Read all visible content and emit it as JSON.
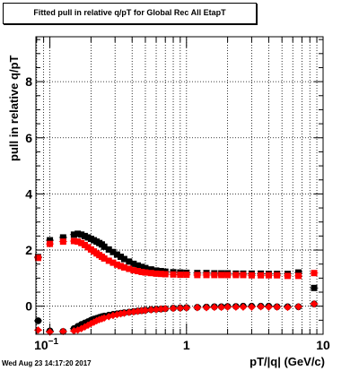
{
  "chart_data": {
    "type": "scatter",
    "title": "Fitted pull in relative q/pT for Global Rec All EtapT",
    "xlabel": "pT/|q| (GeV/c)",
    "ylabel": "pull in relative q/pT",
    "xscale": "log",
    "xlim": [
      0.079,
      10
    ],
    "ylim": [
      -1,
      9.6
    ],
    "grid": true,
    "x_ticks": [
      {
        "value": 0.1,
        "label": "10",
        "exponent": "−1"
      },
      {
        "value": 1,
        "label": "1"
      },
      {
        "value": 10,
        "label": "10"
      }
    ],
    "y_ticks": [
      {
        "value": 0,
        "label": "0"
      },
      {
        "value": 2,
        "label": "2"
      },
      {
        "value": 4,
        "label": "4"
      },
      {
        "value": 6,
        "label": "6"
      },
      {
        "value": 8,
        "label": "8"
      }
    ],
    "colors": {
      "black_series": "#000000",
      "red_series": "#ff0000"
    },
    "series": [
      {
        "marker": "square",
        "color": "#000000",
        "x": [
          0.082,
          0.1,
          0.125,
          0.15,
          0.16,
          0.17,
          0.18,
          0.19,
          0.2,
          0.21,
          0.22,
          0.23,
          0.24,
          0.25,
          0.27,
          0.29,
          0.31,
          0.33,
          0.35,
          0.38,
          0.41,
          0.44,
          0.47,
          0.5,
          0.55,
          0.6,
          0.65,
          0.7,
          0.8,
          0.9,
          1.0,
          1.2,
          1.4,
          1.6,
          1.8,
          2.0,
          2.3,
          2.6,
          3.0,
          3.5,
          4.0,
          4.6,
          5.5,
          6.6,
          8.6
        ],
        "y": [
          1.75,
          2.35,
          2.45,
          2.55,
          2.58,
          2.55,
          2.5,
          2.45,
          2.4,
          2.35,
          2.3,
          2.25,
          2.2,
          2.12,
          2.02,
          1.93,
          1.84,
          1.76,
          1.68,
          1.59,
          1.51,
          1.45,
          1.4,
          1.36,
          1.31,
          1.27,
          1.25,
          1.23,
          1.21,
          1.2,
          1.19,
          1.18,
          1.18,
          1.17,
          1.17,
          1.17,
          1.16,
          1.16,
          1.16,
          1.16,
          1.15,
          1.15,
          1.15,
          1.2,
          0.65
        ]
      },
      {
        "marker": "square",
        "color": "#ff0000",
        "x": [
          0.082,
          0.1,
          0.125,
          0.15,
          0.16,
          0.17,
          0.18,
          0.19,
          0.2,
          0.21,
          0.22,
          0.23,
          0.24,
          0.25,
          0.27,
          0.29,
          0.31,
          0.33,
          0.35,
          0.38,
          0.41,
          0.44,
          0.47,
          0.5,
          0.55,
          0.6,
          0.65,
          0.7,
          0.8,
          0.9,
          1.0,
          1.2,
          1.4,
          1.6,
          1.8,
          2.0,
          2.3,
          2.6,
          3.0,
          3.5,
          4.0,
          4.6,
          5.5,
          6.6,
          8.6
        ],
        "y": [
          1.72,
          2.22,
          2.3,
          2.32,
          2.3,
          2.25,
          2.18,
          2.1,
          2.02,
          1.95,
          1.88,
          1.82,
          1.76,
          1.7,
          1.62,
          1.55,
          1.48,
          1.43,
          1.38,
          1.33,
          1.28,
          1.25,
          1.22,
          1.2,
          1.18,
          1.16,
          1.15,
          1.14,
          1.13,
          1.12,
          1.12,
          1.11,
          1.11,
          1.11,
          1.11,
          1.11,
          1.11,
          1.11,
          1.1,
          1.1,
          1.1,
          1.1,
          1.08,
          1.08,
          1.18
        ]
      },
      {
        "marker": "circle",
        "color": "#000000",
        "x": [
          0.082,
          0.1,
          0.125,
          0.15,
          0.16,
          0.17,
          0.18,
          0.19,
          0.2,
          0.21,
          0.22,
          0.23,
          0.24,
          0.25,
          0.27,
          0.29,
          0.31,
          0.33,
          0.35,
          0.38,
          0.41,
          0.44,
          0.47,
          0.5,
          0.55,
          0.6,
          0.65,
          0.7,
          0.8,
          0.9,
          1.0,
          1.2,
          1.4,
          1.6,
          1.8,
          2.0,
          2.3,
          2.6,
          3.0,
          3.5,
          4.0,
          4.6,
          5.5,
          6.6,
          8.6
        ],
        "y": [
          -0.52,
          -0.88,
          -0.9,
          -0.8,
          -0.72,
          -0.65,
          -0.6,
          -0.55,
          -0.5,
          -0.46,
          -0.43,
          -0.4,
          -0.37,
          -0.35,
          -0.32,
          -0.29,
          -0.27,
          -0.25,
          -0.23,
          -0.21,
          -0.19,
          -0.17,
          -0.16,
          -0.14,
          -0.12,
          -0.11,
          -0.1,
          -0.09,
          -0.07,
          -0.06,
          -0.05,
          -0.04,
          -0.03,
          -0.02,
          -0.02,
          -0.01,
          -0.01,
          0.0,
          0.0,
          0.0,
          0.0,
          -0.02,
          -0.02,
          -0.02,
          0.08
        ]
      },
      {
        "marker": "diamond",
        "color": "#ff0000",
        "x": [
          0.082,
          0.1,
          0.125,
          0.15,
          0.16,
          0.17,
          0.18,
          0.19,
          0.2,
          0.21,
          0.22,
          0.23,
          0.24,
          0.25,
          0.27,
          0.29,
          0.31,
          0.33,
          0.35,
          0.38,
          0.41,
          0.44,
          0.47,
          0.5,
          0.55,
          0.6,
          0.65,
          0.7,
          0.8,
          0.9,
          1.0,
          1.2,
          1.4,
          1.6,
          1.8,
          2.0,
          2.3,
          2.6,
          3.0,
          3.5,
          4.0,
          4.6,
          5.5,
          6.6,
          8.6
        ],
        "y": [
          -0.85,
          -0.92,
          -0.9,
          -0.88,
          -0.85,
          -0.8,
          -0.74,
          -0.68,
          -0.62,
          -0.57,
          -0.52,
          -0.48,
          -0.45,
          -0.42,
          -0.37,
          -0.33,
          -0.3,
          -0.27,
          -0.25,
          -0.22,
          -0.2,
          -0.18,
          -0.16,
          -0.15,
          -0.13,
          -0.12,
          -0.1,
          -0.09,
          -0.08,
          -0.07,
          -0.06,
          -0.05,
          -0.05,
          -0.04,
          -0.04,
          -0.03,
          -0.03,
          -0.03,
          -0.03,
          -0.02,
          -0.03,
          -0.03,
          -0.04,
          -0.02,
          0.08
        ]
      }
    ]
  },
  "footer": {
    "timestamp": "Wed Aug 23 14:17:20 2017"
  }
}
